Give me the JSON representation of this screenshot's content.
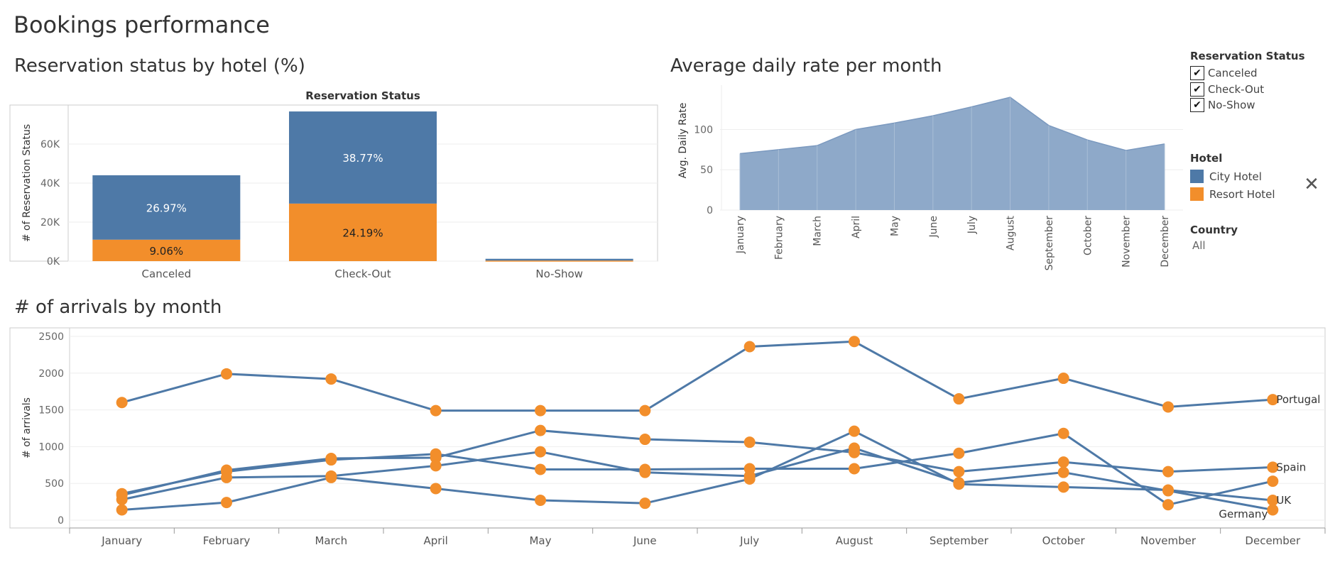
{
  "dashboard_title": "Bookings performance",
  "colors": {
    "city": "#4e79a7",
    "resort": "#f28e2b",
    "area": "#8ea9c9",
    "grid": "#eeeeee",
    "axis": "#cccccc"
  },
  "legend": {
    "status_title": "Reservation Status",
    "status_items": [
      {
        "label": "Canceled",
        "checked": true,
        "check_glyph": "✔"
      },
      {
        "label": "Check-Out",
        "checked": true,
        "check_glyph": "✔"
      },
      {
        "label": "No-Show",
        "checked": true,
        "check_glyph": "✔"
      }
    ],
    "hotel_title": "Hotel",
    "hotel_items": [
      {
        "label": "City Hotel",
        "color": "#4e79a7"
      },
      {
        "label": "Resort Hotel",
        "color": "#f28e2b"
      }
    ],
    "country_title": "Country",
    "country_value": "All",
    "close_icon": "✕"
  },
  "chart_data": [
    {
      "type": "bar",
      "title": "Reservation status by hotel (%)",
      "column_header": "Reservation Status",
      "ylabel": "# of Reservation Status",
      "categories": [
        "Canceled",
        "Check-Out",
        "No-Show"
      ],
      "yticks": [
        0,
        20000,
        40000,
        60000
      ],
      "ytick_labels": [
        "0K",
        "20K",
        "40K",
        "60K"
      ],
      "ylim": [
        0,
        80000
      ],
      "series": [
        {
          "name": "Resort Hotel",
          "values": [
            11000,
            29500,
            300
          ],
          "labels": [
            "9.06%",
            "24.19%",
            ""
          ]
        },
        {
          "name": "City Hotel",
          "values": [
            33000,
            47200,
            900
          ],
          "labels": [
            "26.97%",
            "38.77%",
            ""
          ]
        }
      ]
    },
    {
      "type": "area",
      "title": "Average daily rate per month",
      "ylabel": "Avg. Daily Rate",
      "x": [
        "January",
        "February",
        "March",
        "April",
        "May",
        "June",
        "July",
        "August",
        "September",
        "October",
        "November",
        "December"
      ],
      "yticks": [
        0,
        50,
        100
      ],
      "ylim": [
        0,
        155
      ],
      "series": [
        {
          "name": "City Hotel",
          "values": [
            70,
            75,
            80,
            100,
            108,
            117,
            128,
            140,
            105,
            87,
            74,
            82
          ]
        }
      ]
    },
    {
      "type": "line",
      "title": "# of arrivals by month",
      "ylabel": "# of arrivals",
      "x": [
        "January",
        "February",
        "March",
        "April",
        "May",
        "June",
        "July",
        "August",
        "September",
        "October",
        "November",
        "December"
      ],
      "yticks": [
        0,
        500,
        1000,
        1500,
        2000,
        2500
      ],
      "ylim": [
        0,
        2500
      ],
      "series": [
        {
          "name": "Portugal",
          "values": [
            1600,
            1990,
            1920,
            1490,
            1490,
            1490,
            2360,
            2430,
            1650,
            1930,
            1540,
            1640
          ]
        },
        {
          "name": "Spain",
          "values": [
            340,
            680,
            840,
            850,
            1220,
            1100,
            1060,
            920,
            660,
            790,
            660,
            720
          ]
        },
        {
          "name": "UK",
          "values": [
            140,
            240,
            580,
            430,
            270,
            230,
            560,
            1210,
            490,
            450,
            410,
            270
          ]
        },
        {
          "name": "Germany",
          "values": [
            280,
            580,
            600,
            740,
            930,
            650,
            600,
            980,
            510,
            650,
            400,
            140
          ]
        },
        {
          "name": "",
          "values": [
            360,
            660,
            820,
            900,
            690,
            690,
            700,
            700,
            910,
            1180,
            210,
            530
          ]
        }
      ]
    }
  ]
}
